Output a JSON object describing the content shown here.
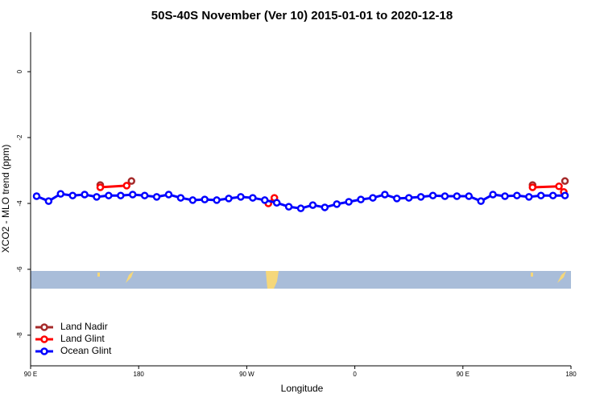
{
  "chart_data": {
    "type": "line",
    "title": "50S-40S November (Ver 10)   2015-01-01 to 2020-12-18",
    "xlabel": "Longitude",
    "ylabel": "XCO2 - MLO trend (ppm)",
    "xlim": [
      90,
      540
    ],
    "ylim": [
      -8.93,
      1.2
    ],
    "xticks": [
      {
        "value": 90,
        "label": "90 E"
      },
      {
        "value": 180,
        "label": "180"
      },
      {
        "value": 270,
        "label": "90 W"
      },
      {
        "value": 360,
        "label": "0"
      },
      {
        "value": 450,
        "label": "90 E"
      },
      {
        "value": 540,
        "label": "180"
      }
    ],
    "yticks": [
      0,
      -2,
      -4,
      -6,
      -8
    ],
    "legend": "bottom-left",
    "series": [
      {
        "name": "Land Nadir",
        "color": "#a52a2a",
        "x": [
          148,
          160,
          174,
          400,
          508,
          520,
          535
        ],
        "values": [
          -3.44,
          null,
          -3.32,
          null,
          -3.44,
          null,
          -3.32
        ]
      },
      {
        "name": "Land Glint",
        "color": "#ff0000",
        "x": [
          148,
          170,
          230,
          288,
          293,
          400,
          508,
          530,
          534
        ],
        "values": [
          -3.51,
          -3.46,
          null,
          -4.0,
          -3.83,
          null,
          -3.51,
          -3.48,
          -3.65
        ]
      },
      {
        "name": "Ocean Glint",
        "color": "#0000ff",
        "x": [
          95,
          105,
          115,
          125,
          135,
          145,
          155,
          165,
          175,
          185,
          195,
          205,
          215,
          225,
          235,
          245,
          255,
          265,
          275,
          285,
          295,
          305,
          315,
          325,
          335,
          345,
          355,
          365,
          375,
          385,
          395,
          405,
          415,
          425,
          435,
          445,
          455,
          465,
          475,
          485,
          495,
          505,
          515,
          525,
          535
        ],
        "values": [
          -3.78,
          -3.93,
          -3.71,
          -3.76,
          -3.73,
          -3.8,
          -3.76,
          -3.76,
          -3.73,
          -3.76,
          -3.8,
          -3.73,
          -3.83,
          -3.9,
          -3.88,
          -3.9,
          -3.85,
          -3.8,
          -3.83,
          -3.9,
          -3.98,
          -4.1,
          -4.15,
          -4.05,
          -4.12,
          -4.02,
          -3.95,
          -3.88,
          -3.83,
          -3.73,
          -3.85,
          -3.83,
          -3.8,
          -3.76,
          -3.78,
          -3.78,
          -3.78,
          -3.93,
          -3.73,
          -3.78,
          -3.76,
          -3.8,
          -3.76,
          -3.76,
          -3.76
        ]
      }
    ]
  }
}
